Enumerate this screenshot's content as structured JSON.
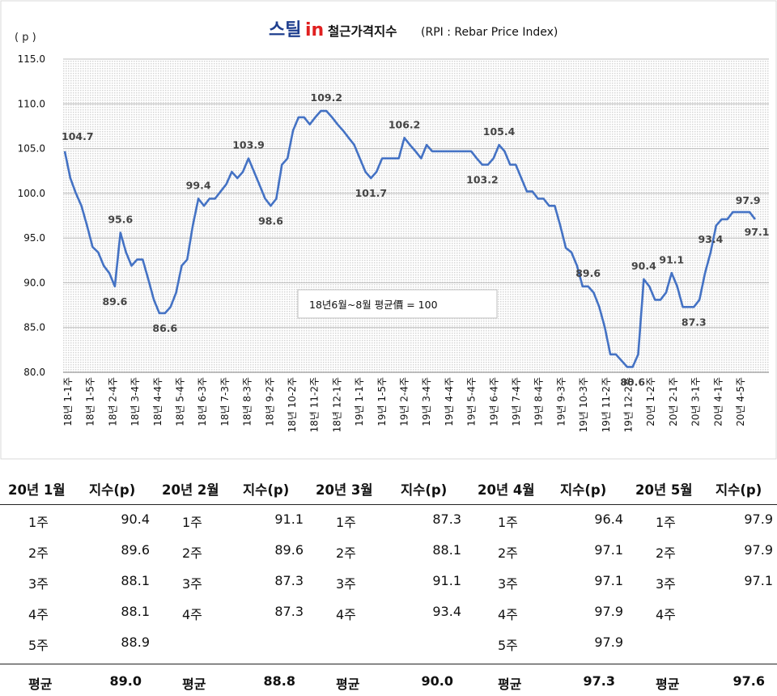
{
  "chart_data": {
    "type": "line",
    "title": "철근가격지수",
    "title_en": "(RPI : Rebar Price Index)",
    "logo": {
      "part1": "스틸",
      "part2": "in"
    },
    "ylabel": "( p )",
    "ylim": [
      80,
      115
    ],
    "yticks": [
      "115.0",
      "110.0",
      "105.0",
      "100.0",
      "95.0",
      "90.0",
      "85.0",
      "80.0"
    ],
    "grid": true,
    "legend": "none",
    "line_color": "#4472c4",
    "note": "18년6월~8월 평균價 = 100",
    "xtick_labels": [
      "18년 1-1주",
      "18년 1-5주",
      "18년 2-4주",
      "18년 3-4주",
      "18년 4-4주",
      "18년 5-4주",
      "18년 6-3주",
      "18년 7-3주",
      "18년 8-3주",
      "18년 9-2주",
      "18년 10-2주",
      "18년 11-2주",
      "18년 12-1주",
      "19년 1-1주",
      "19년 1-5주",
      "19년 2-4주",
      "19년 3-4주",
      "19년 4-4주",
      "19년 5-4주",
      "19년 6-4주",
      "19년 7-4주",
      "19년 8-4주",
      "19년 9-3주",
      "19년 10-3주",
      "19년 11-2주",
      "19년 12-2주",
      "20년 1-2주",
      "20년 2-1주",
      "20년 3-1주",
      "20년 4-1주",
      "20년 4-5주"
    ],
    "values": [
      104.7,
      101.7,
      100.0,
      98.6,
      96.4,
      94.0,
      93.4,
      91.9,
      91.1,
      89.6,
      95.6,
      93.4,
      91.9,
      92.6,
      92.6,
      90.4,
      88.1,
      86.6,
      86.6,
      87.3,
      88.9,
      91.9,
      92.6,
      96.4,
      99.4,
      98.6,
      99.4,
      99.4,
      100.2,
      101.0,
      102.4,
      101.7,
      102.4,
      103.9,
      102.4,
      100.9,
      99.4,
      98.6,
      99.4,
      103.2,
      103.9,
      107.0,
      108.5,
      108.5,
      107.7,
      108.5,
      109.2,
      109.2,
      108.5,
      107.7,
      107.0,
      106.2,
      105.4,
      103.9,
      102.4,
      101.7,
      102.4,
      103.9,
      103.9,
      103.9,
      103.9,
      106.2,
      105.4,
      104.7,
      103.9,
      105.4,
      104.7,
      104.7,
      104.7,
      104.7,
      104.7,
      104.7,
      104.7,
      104.7,
      103.9,
      103.2,
      103.2,
      103.9,
      105.4,
      104.7,
      103.2,
      103.2,
      101.7,
      100.2,
      100.2,
      99.4,
      99.4,
      98.6,
      98.6,
      96.4,
      93.9,
      93.4,
      91.9,
      89.6,
      89.6,
      88.9,
      87.3,
      85.0,
      82.0,
      82.0,
      81.3,
      80.6,
      80.6,
      82.0,
      90.4,
      89.6,
      88.1,
      88.1,
      88.9,
      91.1,
      89.6,
      87.3,
      87.3,
      87.3,
      88.1,
      91.1,
      93.4,
      96.4,
      97.1,
      97.1,
      97.9,
      97.9,
      97.9,
      97.9,
      97.1
    ],
    "data_labels": [
      {
        "index": 0,
        "text": "104.7"
      },
      {
        "index": 9,
        "text": "89.6"
      },
      {
        "index": 10,
        "text": "95.6"
      },
      {
        "index": 18,
        "text": "86.6"
      },
      {
        "index": 24,
        "text": "99.4"
      },
      {
        "index": 33,
        "text": "103.9"
      },
      {
        "index": 37,
        "text": "98.6"
      },
      {
        "index": 47,
        "text": "109.2"
      },
      {
        "index": 55,
        "text": "101.7"
      },
      {
        "index": 61,
        "text": "106.2"
      },
      {
        "index": 75,
        "text": "103.2"
      },
      {
        "index": 78,
        "text": "105.4"
      },
      {
        "index": 94,
        "text": "89.6"
      },
      {
        "index": 102,
        "text": "80.6"
      },
      {
        "index": 104,
        "text": "90.4"
      },
      {
        "index": 109,
        "text": "91.1"
      },
      {
        "index": 113,
        "text": "87.3"
      },
      {
        "index": 116,
        "text": "93.4"
      },
      {
        "index": 123,
        "text": "97.9"
      },
      {
        "index": 124,
        "text": "97.1"
      }
    ]
  },
  "table": {
    "index_header": "지수(p)",
    "avg_label": "평균",
    "months": [
      {
        "name": "20년 1월",
        "weeks": [
          [
            "1주",
            "90.4"
          ],
          [
            "2주",
            "89.6"
          ],
          [
            "3주",
            "88.1"
          ],
          [
            "4주",
            "88.1"
          ],
          [
            "5주",
            "88.9"
          ]
        ],
        "avg": "89.0"
      },
      {
        "name": "20년 2월",
        "weeks": [
          [
            "1주",
            "91.1"
          ],
          [
            "2주",
            "89.6"
          ],
          [
            "3주",
            "87.3"
          ],
          [
            "4주",
            "87.3"
          ]
        ],
        "avg": "88.8"
      },
      {
        "name": "20년 3월",
        "weeks": [
          [
            "1주",
            "87.3"
          ],
          [
            "2주",
            "88.1"
          ],
          [
            "3주",
            "91.1"
          ],
          [
            "4주",
            "93.4"
          ]
        ],
        "avg": "90.0"
      },
      {
        "name": "20년 4월",
        "weeks": [
          [
            "1주",
            "96.4"
          ],
          [
            "2주",
            "97.1"
          ],
          [
            "3주",
            "97.1"
          ],
          [
            "4주",
            "97.9"
          ],
          [
            "5주",
            "97.9"
          ]
        ],
        "avg": "97.3"
      },
      {
        "name": "20년 5월",
        "weeks": [
          [
            "1주",
            "97.9"
          ],
          [
            "2주",
            "97.9"
          ],
          [
            "3주",
            "97.1"
          ],
          [
            "4주",
            ""
          ]
        ],
        "avg": "97.6"
      }
    ]
  }
}
